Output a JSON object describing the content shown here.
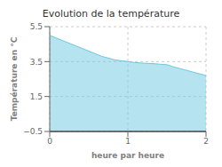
{
  "chart_data": {
    "type": "area",
    "title": "Evolution de la température",
    "x_label": "heure par heure",
    "y_label": "Température en °C",
    "x": [
      0.0,
      0.083,
      0.167,
      0.25,
      0.333,
      0.417,
      0.5,
      0.583,
      0.667,
      0.75,
      0.833,
      0.917,
      1.0,
      1.083,
      1.167,
      1.25,
      1.333,
      1.417,
      1.5,
      1.583,
      1.667,
      1.75,
      1.833,
      1.917,
      2.0
    ],
    "values": [
      5.0,
      4.85,
      4.7,
      4.55,
      4.4,
      4.25,
      4.1,
      3.95,
      3.8,
      3.7,
      3.6,
      3.55,
      3.5,
      3.45,
      3.42,
      3.4,
      3.38,
      3.35,
      3.32,
      3.2,
      3.1,
      3.0,
      2.9,
      2.8,
      2.7
    ],
    "baseline": -0.5,
    "color": "#6cc8e0",
    "xlim": [
      0,
      2
    ],
    "ylim": [
      -0.5,
      5.5
    ],
    "xticks": [
      0,
      1,
      2
    ],
    "yticks": [
      {
        "value": -0.5,
        "label": "−0.5"
      },
      {
        "value": 1.5,
        "label": "1.5"
      },
      {
        "value": 3.5,
        "label": "3.5"
      },
      {
        "value": 5.5,
        "label": "5.5"
      }
    ],
    "grid": true
  }
}
